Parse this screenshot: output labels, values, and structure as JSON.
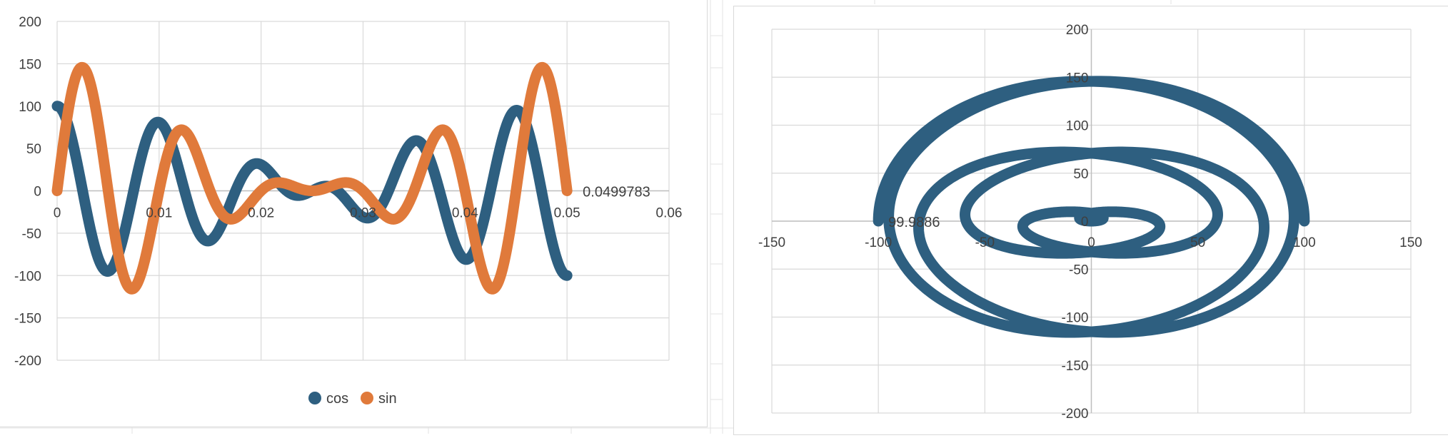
{
  "colors": {
    "cos": "#2e5f80",
    "sin": "#e07a3b",
    "grid": "#d9d9d9",
    "text": "#404040"
  },
  "chart_data": [
    {
      "type": "line",
      "x_range": [
        0,
        0.06
      ],
      "y_range": [
        -200,
        200
      ],
      "x_ticks": [
        "0",
        "0.01",
        "0.02",
        "0.03",
        "0.04",
        "0.05",
        "0.06"
      ],
      "y_ticks": [
        "200",
        "150",
        "100",
        "50",
        "0",
        "-50",
        "-100",
        "-150",
        "-200"
      ],
      "grid": true,
      "legend_position": "bottom",
      "x_end": 0.05,
      "series": [
        {
          "name": "cos",
          "color": "#2e5f80",
          "formula": "y = 100 * cos(2π·100·t) · cos(2π·10·t)"
        },
        {
          "name": "sin",
          "color": "#e07a3b",
          "formula": "y = 100 * sin(2π·100·t) · cos(2π·10·t) · (1 + 0.5·cos(2π·20·t))"
        }
      ],
      "data_label": "0.0499783"
    },
    {
      "type": "scatter",
      "x_range": [
        -150,
        150
      ],
      "y_range": [
        -200,
        200
      ],
      "x_ticks": [
        "-150",
        "-100",
        "-50",
        "0",
        "50",
        "100",
        "150"
      ],
      "y_ticks": [
        "200",
        "150",
        "100",
        "50",
        "0",
        "-50",
        "-100",
        "-150",
        "-200"
      ],
      "grid": true,
      "series": [
        {
          "color": "#2e5f80",
          "description": "parametric Lissajous-like curve (cos vs sin)"
        }
      ],
      "data_label": "99.9886"
    }
  ]
}
